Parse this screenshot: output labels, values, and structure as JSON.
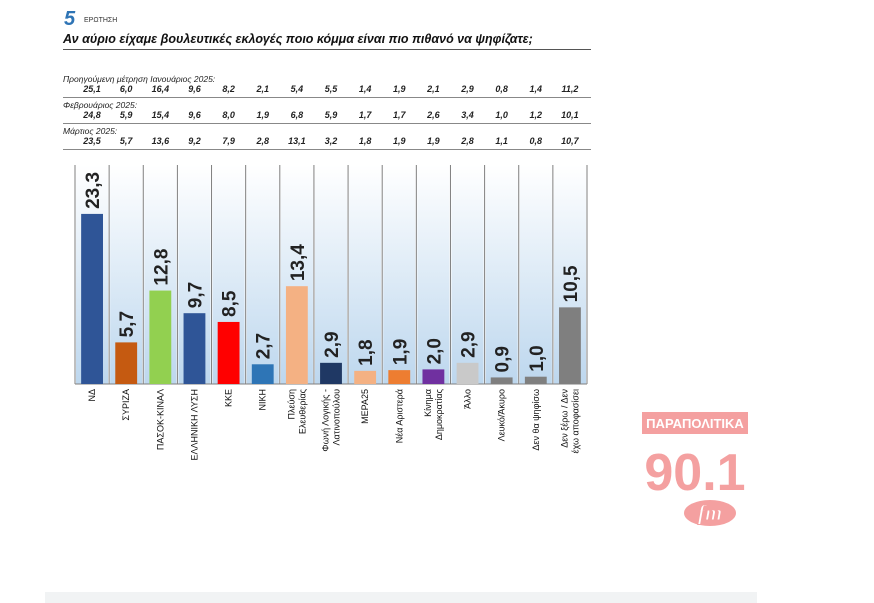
{
  "header": {
    "question_number": "5",
    "question_label": "ΕΡΩΤΗΣΗ",
    "question_text": "Αν αύριο είχαμε βουλευτικές εκλογές ποιο κόμμα είναι πιο πιθανό να ψηφίζατε;"
  },
  "previous_measurements": [
    {
      "label": "Προηγούμενη μέτρηση Ιανουάριος 2025:",
      "values": [
        "25,1",
        "6,0",
        "16,4",
        "9,6",
        "8,2",
        "2,1",
        "5,4",
        "5,5",
        "1,4",
        "1,9",
        "2,1",
        "2,9",
        "0,8",
        "1,4",
        "11,2"
      ]
    },
    {
      "label": "Φεβρουάριος 2025:",
      "values": [
        "24,8",
        "5,9",
        "15,4",
        "9,6",
        "8,0",
        "1,9",
        "6,8",
        "5,9",
        "1,7",
        "1,7",
        "2,6",
        "3,4",
        "1,0",
        "1,2",
        "10,1"
      ]
    },
    {
      "label": "Μάρτιος 2025:",
      "values": [
        "23,5",
        "5,7",
        "13,6",
        "9,2",
        "7,9",
        "2,8",
        "13,1",
        "3,2",
        "1,8",
        "1,9",
        "1,9",
        "2,8",
        "1,1",
        "0,8",
        "10,7"
      ]
    }
  ],
  "chart_data": {
    "type": "bar",
    "categories": [
      [
        "ΝΔ"
      ],
      [
        "ΣΥΡΙΖΑ"
      ],
      [
        "ΠΑΣΟΚ-ΚΙΝΑΛ"
      ],
      [
        "ΕΛΛΗΝΙΚΗ ΛΥΣΗ"
      ],
      [
        "ΚΚΕ"
      ],
      [
        "ΝΙΚΗ"
      ],
      [
        "Πλεύση",
        "Ελευθερίας"
      ],
      [
        "Φωνή Λογικής -",
        "Λατινοπούλου"
      ],
      [
        "ΜΕΡΑ25"
      ],
      [
        "Νέα Αριστερά"
      ],
      [
        "Κίνημα",
        "Δημοκρατίας"
      ],
      [
        "Άλλο"
      ],
      [
        "Λευκό/Άκυρο"
      ],
      [
        "Δεν θα ψηφίσω"
      ],
      [
        "Δεν ξέρω / Δεν",
        "έχω αποφασίσει"
      ]
    ],
    "values": [
      23.3,
      5.7,
      12.8,
      9.7,
      8.5,
      2.7,
      13.4,
      2.9,
      1.8,
      1.9,
      2.0,
      2.9,
      0.9,
      1.0,
      10.5
    ],
    "value_labels": [
      "23,3",
      "5,7",
      "12,8",
      "9,7",
      "8,5",
      "2,7",
      "13,4",
      "2,9",
      "1,8",
      "1,9",
      "2,0",
      "2,9",
      "0,9",
      "1,0",
      "10,5"
    ],
    "colors": [
      "#2f5597",
      "#c55a11",
      "#92d050",
      "#2f5597",
      "#ff0000",
      "#2e75b6",
      "#f4b183",
      "#1f3864",
      "#f4b183",
      "#ed7d31",
      "#7030a0",
      "#c9c9c9",
      "#7f7f7f",
      "#7f7f7f",
      "#7f7f7f"
    ],
    "ylim": [
      0,
      30
    ],
    "grid": false,
    "background_gradient": [
      "#ffffff",
      "#bdd7ee"
    ]
  },
  "watermark": {
    "brand": "ΠΑΡΑΠΟΛΙΤΙΚΑ",
    "frequency": "90.1",
    "band": "fm",
    "color": "#f4a0a0"
  }
}
